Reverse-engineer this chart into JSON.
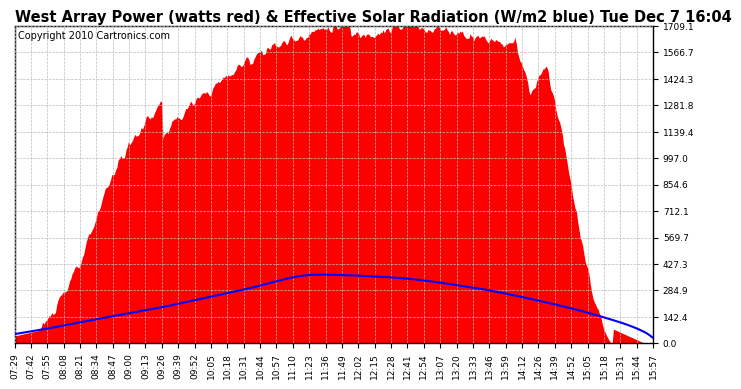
{
  "title": "West Array Power (watts red) & Effective Solar Radiation (W/m2 blue) Tue Dec 7 16:04",
  "copyright": "Copyright 2010 Cartronics.com",
  "background_color": "#ffffff",
  "plot_bg_color": "#ffffff",
  "grid_color": "#bbbbbb",
  "y_max": 1709.1,
  "y_min": 0.0,
  "y_ticks": [
    0.0,
    142.4,
    284.9,
    427.3,
    569.7,
    712.1,
    854.6,
    997.0,
    1139.4,
    1281.8,
    1424.3,
    1566.7,
    1709.1
  ],
  "x_labels": [
    "07:29",
    "07:42",
    "07:55",
    "08:08",
    "08:21",
    "08:34",
    "08:47",
    "09:00",
    "09:13",
    "09:26",
    "09:39",
    "09:52",
    "10:05",
    "10:18",
    "10:31",
    "10:44",
    "10:57",
    "11:10",
    "11:23",
    "11:36",
    "11:49",
    "12:02",
    "12:15",
    "12:28",
    "12:41",
    "12:54",
    "13:07",
    "13:20",
    "13:33",
    "13:46",
    "13:59",
    "14:12",
    "14:26",
    "14:39",
    "14:52",
    "15:05",
    "15:18",
    "15:31",
    "15:44",
    "15:57"
  ],
  "red_color": "#ff0000",
  "blue_color": "#0000ff",
  "title_fontsize": 10.5,
  "copyright_fontsize": 7,
  "tick_fontsize": 6.5,
  "red_peak": 1709.1,
  "blue_peak": 370.0
}
